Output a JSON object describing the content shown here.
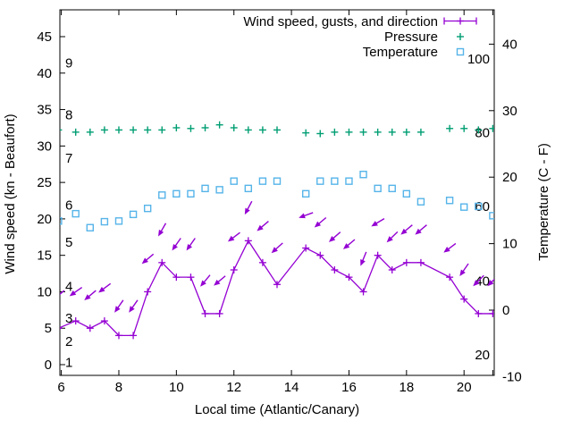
{
  "figure": {
    "background": "#ffffff"
  },
  "chart_data": {
    "type": "line",
    "title": "",
    "xlabel": "Local time (Atlantic/Canary)",
    "ylabel_left": "Wind speed (kn - Beaufort)",
    "ylabel_right": "Temperature (C - F)",
    "legend_position": "top-right-inside",
    "grid": false,
    "x_range": [
      5.95,
      21.05
    ],
    "x_tick_labels": [
      6,
      8,
      10,
      12,
      14,
      16,
      18,
      20
    ],
    "x_ticks_unlabeled": [
      21
    ],
    "y_left_range": [
      -1.47,
      48.68
    ],
    "y_left_ticks": [
      0,
      5,
      10,
      15,
      20,
      25,
      30,
      35,
      40,
      45
    ],
    "y_right_range": [
      -9.81,
      45.16
    ],
    "y_right_ticks": [
      -10,
      0,
      10,
      20,
      30,
      40
    ],
    "beaufort_inner_labels": [
      {
        "label": "1",
        "kn": 0.3
      },
      {
        "label": "2",
        "kn": 3.2
      },
      {
        "label": "3",
        "kn": 6.4
      },
      {
        "label": "4",
        "kn": 10.7
      },
      {
        "label": "5",
        "kn": 16.8
      },
      {
        "label": "6",
        "kn": 21.9
      },
      {
        "label": "7",
        "kn": 28.3
      },
      {
        "label": "8",
        "kn": 34.3
      },
      {
        "label": "9",
        "kn": 41.4
      }
    ],
    "fahrenheit_inner_labels": [
      {
        "label": "20",
        "c": -6.7
      },
      {
        "label": "40",
        "c": 4.4
      },
      {
        "label": "60",
        "c": 15.6
      },
      {
        "label": "80",
        "c": 26.7
      },
      {
        "label": "100",
        "c": 37.8
      }
    ],
    "legend": [
      {
        "label": "Wind speed, gusts, and direction",
        "color": "#9400d3",
        "marker": "errorbar-line-plus"
      },
      {
        "label": "Pressure",
        "color": "#009e73",
        "marker": "plus"
      },
      {
        "label": "Temperature",
        "color": "#56b4e9",
        "marker": "open-square"
      }
    ],
    "x": [
      5.9,
      6.5,
      7,
      7.5,
      8,
      8.5,
      9,
      9.5,
      10,
      10.5,
      11,
      11.5,
      12,
      12.5,
      13,
      13.5,
      14.5,
      15,
      15.5,
      16,
      16.5,
      17,
      17.5,
      18,
      18.5,
      19.5,
      20,
      20.5,
      21
    ],
    "series": [
      {
        "name": "wind_speed",
        "axis": "left",
        "units": "kn",
        "color": "#9400d3",
        "style": "line+plus",
        "values": [
          5,
          6,
          5,
          6,
          4,
          4,
          10,
          14,
          12,
          12,
          7,
          7,
          13,
          17,
          14,
          11,
          16,
          15,
          13,
          12,
          10,
          15,
          13,
          14,
          14,
          12,
          9,
          7,
          7
        ]
      },
      {
        "name": "wind_gust",
        "axis": "left",
        "units": "kn",
        "color": "#9400d3",
        "style": "direction-arrows",
        "values": [
          9.5,
          10,
          9.5,
          10.5,
          8,
          8,
          14.5,
          18.5,
          16.5,
          16.5,
          11.5,
          11.5,
          17.5,
          21.5,
          19,
          16,
          20.5,
          19.5,
          17.5,
          16.5,
          14.5,
          19.5,
          17.5,
          18.5,
          18.5,
          16,
          13,
          11.5,
          11.5
        ],
        "arrow_deg": [
          140,
          145,
          140,
          143,
          125,
          125,
          140,
          120,
          125,
          125,
          130,
          140,
          143,
          118,
          140,
          138,
          160,
          140,
          139,
          140,
          112,
          149,
          136,
          140,
          140,
          143,
          125,
          135,
          135
        ]
      },
      {
        "name": "pressure",
        "axis": "left-plot-units",
        "units": "",
        "color": "#009e73",
        "style": "plus",
        "values": [
          32.2,
          31.9,
          31.9,
          32.2,
          32.2,
          32.2,
          32.2,
          32.2,
          32.5,
          32.4,
          32.5,
          32.9,
          32.5,
          32.2,
          32.2,
          32.2,
          31.8,
          31.7,
          31.9,
          31.9,
          31.9,
          31.9,
          31.9,
          31.9,
          31.9,
          32.4,
          32.4,
          32.2,
          32.4
        ]
      },
      {
        "name": "temperature",
        "axis": "right",
        "units": "C",
        "color": "#56b4e9",
        "style": "open-square",
        "values": [
          13.4,
          14.5,
          12.4,
          13.3,
          13.4,
          14.4,
          15.3,
          17.3,
          17.5,
          17.5,
          18.3,
          18.1,
          19.4,
          18.3,
          19.4,
          19.4,
          17.5,
          19.4,
          19.4,
          19.4,
          20.4,
          18.3,
          18.3,
          17.5,
          16.3,
          16.5,
          15.5,
          15.6,
          14.2
        ]
      }
    ]
  }
}
